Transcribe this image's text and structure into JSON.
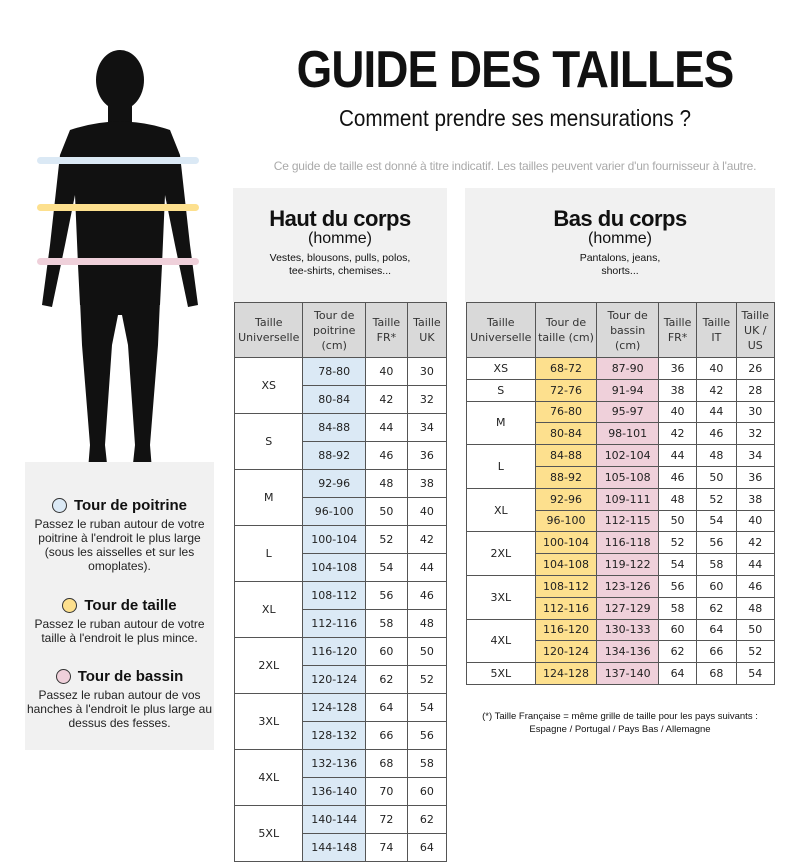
{
  "title": "GUIDE DES TAILLES",
  "subtitle": "Comment prendre ses mensurations ?",
  "note": "Ce guide de taille est donné à titre indicatif. Les tailles peuvent varier d'un fournisseur à l'autre.",
  "colors": {
    "chest": "#dbe9f5",
    "waist": "#fde08e",
    "hips": "#efd0da"
  },
  "legend": [
    {
      "title": "Tour de poitrine",
      "desc": "Passez le ruban autour de votre poitrine à l'endroit le plus large (sous les aisselles et sur les omoplates).",
      "color": "#dbe9f5"
    },
    {
      "title": "Tour de taille",
      "desc": "Passez le ruban autour de votre taille à l'endroit le plus mince.",
      "color": "#fde08e"
    },
    {
      "title": "Tour de bassin",
      "desc": "Passez le ruban autour de vos hanches à l'endroit le plus large au dessus des fesses.",
      "color": "#efd0da"
    }
  ],
  "top": {
    "heading": "Haut du corps",
    "sub": "(homme)",
    "desc": "Vestes, blousons, pulls, polos, tee-shirts, chemises...",
    "headers": [
      "Taille Universelle",
      "Tour de poitrine (cm)",
      "Taille FR*",
      "Taille UK"
    ],
    "rows": [
      {
        "size": "XS",
        "lines": [
          [
            "78-80",
            "40",
            "30"
          ],
          [
            "80-84",
            "42",
            "32"
          ]
        ]
      },
      {
        "size": "S",
        "lines": [
          [
            "84-88",
            "44",
            "34"
          ],
          [
            "88-92",
            "46",
            "36"
          ]
        ]
      },
      {
        "size": "M",
        "lines": [
          [
            "92-96",
            "48",
            "38"
          ],
          [
            "96-100",
            "50",
            "40"
          ]
        ]
      },
      {
        "size": "L",
        "lines": [
          [
            "100-104",
            "52",
            "42"
          ],
          [
            "104-108",
            "54",
            "44"
          ]
        ]
      },
      {
        "size": "XL",
        "lines": [
          [
            "108-112",
            "56",
            "46"
          ],
          [
            "112-116",
            "58",
            "48"
          ]
        ]
      },
      {
        "size": "2XL",
        "lines": [
          [
            "116-120",
            "60",
            "50"
          ],
          [
            "120-124",
            "62",
            "52"
          ]
        ]
      },
      {
        "size": "3XL",
        "lines": [
          [
            "124-128",
            "64",
            "54"
          ],
          [
            "128-132",
            "66",
            "56"
          ]
        ]
      },
      {
        "size": "4XL",
        "lines": [
          [
            "132-136",
            "68",
            "58"
          ],
          [
            "136-140",
            "70",
            "60"
          ]
        ]
      },
      {
        "size": "5XL",
        "lines": [
          [
            "140-144",
            "72",
            "62"
          ],
          [
            "144-148",
            "74",
            "64"
          ]
        ]
      }
    ]
  },
  "bottom": {
    "heading": "Bas du corps",
    "sub": "(homme)",
    "desc": "Pantalons, jeans, shorts...",
    "headers": [
      "Taille Universelle",
      "Tour de taille (cm)",
      "Tour de bassin (cm)",
      "Taille FR*",
      "Taille IT",
      "Taille UK / US"
    ],
    "rows": [
      {
        "size": "XS",
        "lines": [
          [
            "68-72",
            "87-90",
            "36",
            "40",
            "26"
          ]
        ]
      },
      {
        "size": "S",
        "lines": [
          [
            "72-76",
            "91-94",
            "38",
            "42",
            "28"
          ]
        ]
      },
      {
        "size": "M",
        "lines": [
          [
            "76-80",
            "95-97",
            "40",
            "44",
            "30"
          ],
          [
            "80-84",
            "98-101",
            "42",
            "46",
            "32"
          ]
        ]
      },
      {
        "size": "L",
        "lines": [
          [
            "84-88",
            "102-104",
            "44",
            "48",
            "34"
          ],
          [
            "88-92",
            "105-108",
            "46",
            "50",
            "36"
          ]
        ]
      },
      {
        "size": "XL",
        "lines": [
          [
            "92-96",
            "109-111",
            "48",
            "52",
            "38"
          ],
          [
            "96-100",
            "112-115",
            "50",
            "54",
            "40"
          ]
        ]
      },
      {
        "size": "2XL",
        "lines": [
          [
            "100-104",
            "116-118",
            "52",
            "56",
            "42"
          ],
          [
            "104-108",
            "119-122",
            "54",
            "58",
            "44"
          ]
        ]
      },
      {
        "size": "3XL",
        "lines": [
          [
            "108-112",
            "123-126",
            "56",
            "60",
            "46"
          ],
          [
            "112-116",
            "127-129",
            "58",
            "62",
            "48"
          ]
        ]
      },
      {
        "size": "4XL",
        "lines": [
          [
            "116-120",
            "130-133",
            "60",
            "64",
            "50"
          ],
          [
            "120-124",
            "134-136",
            "62",
            "66",
            "52"
          ]
        ]
      },
      {
        "size": "5XL",
        "lines": [
          [
            "124-128",
            "137-140",
            "64",
            "68",
            "54"
          ]
        ]
      }
    ]
  },
  "footnote": "(*) Taille Française = même grille de taille pour les pays suivants : Espagne / Portugal / Pays Bas / Allemagne"
}
